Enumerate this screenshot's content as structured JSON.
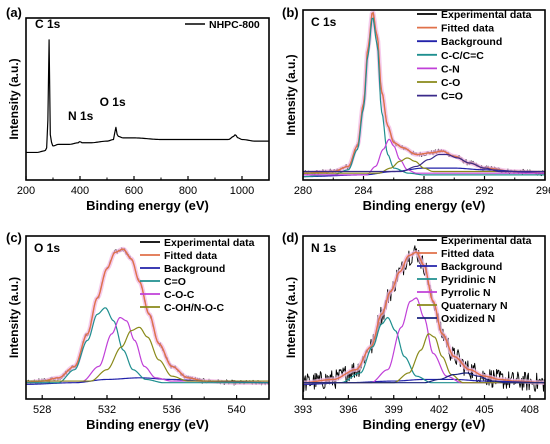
{
  "colors": {
    "experimental": "#000000",
    "fitted": "#e0714a",
    "background": "#2222aa",
    "teal": "#1f8f8f",
    "magenta": "#c040d8",
    "olive": "#8a8a1a",
    "navy": "#3a2a8a",
    "darkblue": "#1a237e"
  },
  "chart_data": [
    {
      "type": "line",
      "panel_label": "(a)",
      "xlabel": "Binding energy (eV)",
      "ylabel": "Intensity (a.u.)",
      "xlim": [
        200,
        1100
      ],
      "xticks": [
        200,
        400,
        600,
        800,
        1000
      ],
      "ylim": [
        0,
        1
      ],
      "legend_position": "top-right",
      "annotations": [
        {
          "text": "C 1s",
          "x": 285
        },
        {
          "text": "N 1s",
          "x": 400
        },
        {
          "text": "O 1s",
          "x": 532
        }
      ],
      "series": [
        {
          "name": "NHPC-800",
          "color": "#000000",
          "x": [
            200,
            240,
            270,
            278,
            282,
            284,
            285,
            286,
            288,
            292,
            300,
            320,
            360,
            395,
            400,
            405,
            440,
            500,
            525,
            530,
            532,
            534,
            540,
            560,
            600,
            700,
            800,
            900,
            950,
            970,
            975,
            985,
            1000,
            1050,
            1100
          ],
          "y": [
            0.17,
            0.17,
            0.18,
            0.2,
            0.4,
            0.8,
            0.98,
            0.75,
            0.32,
            0.24,
            0.21,
            0.22,
            0.22,
            0.23,
            0.24,
            0.23,
            0.23,
            0.24,
            0.25,
            0.3,
            0.35,
            0.3,
            0.27,
            0.26,
            0.26,
            0.25,
            0.25,
            0.25,
            0.25,
            0.27,
            0.28,
            0.26,
            0.25,
            0.24,
            0.24
          ]
        }
      ]
    },
    {
      "type": "line",
      "panel_label": "(b)",
      "title": "C 1s",
      "xlabel": "Binding energy (eV)",
      "ylabel": "Intensity (a.u.)",
      "xlim": [
        280,
        296
      ],
      "xticks": [
        280,
        284,
        288,
        292,
        296
      ],
      "ylim": [
        0,
        1
      ],
      "legend_position": "top-right",
      "legend": [
        "Experimental data",
        "Fitted data",
        "Background",
        "C-C/C=C",
        "C-N",
        "C-O",
        "C=O"
      ],
      "series": [
        {
          "name": "Experimental data",
          "color": "#000000",
          "noisy": true,
          "x": [
            280,
            282,
            283,
            283.6,
            284.0,
            284.3,
            284.6,
            284.9,
            285.2,
            285.6,
            286.0,
            286.6,
            287.5,
            288.5,
            289.2,
            290.0,
            291.0,
            292.0,
            294.0,
            296.0
          ],
          "y": [
            0.04,
            0.05,
            0.08,
            0.2,
            0.45,
            0.78,
            0.99,
            0.85,
            0.52,
            0.32,
            0.22,
            0.19,
            0.15,
            0.16,
            0.17,
            0.14,
            0.1,
            0.07,
            0.05,
            0.04
          ]
        },
        {
          "name": "Fitted data",
          "color": "#e0714a",
          "x": [
            280,
            282,
            283,
            283.6,
            284.0,
            284.3,
            284.6,
            284.9,
            285.2,
            285.6,
            286.0,
            286.6,
            287.5,
            288.5,
            289.2,
            290.0,
            291.0,
            292.0,
            294.0,
            296.0
          ],
          "y": [
            0.04,
            0.05,
            0.08,
            0.2,
            0.45,
            0.78,
            0.99,
            0.85,
            0.52,
            0.32,
            0.22,
            0.19,
            0.15,
            0.16,
            0.17,
            0.14,
            0.1,
            0.07,
            0.05,
            0.04
          ]
        },
        {
          "name": "Background",
          "color": "#2222aa",
          "x": [
            280,
            284,
            286,
            288,
            290,
            292,
            296
          ],
          "y": [
            0.02,
            0.03,
            0.05,
            0.07,
            0.07,
            0.06,
            0.04
          ]
        },
        {
          "name": "C-C/C=C",
          "color": "#1f8f8f",
          "x": [
            280,
            282,
            283,
            283.6,
            284.0,
            284.3,
            284.6,
            284.9,
            285.2,
            285.6,
            286.0,
            287.0,
            288.0,
            290.0,
            296.0
          ],
          "y": [
            0.02,
            0.03,
            0.06,
            0.18,
            0.42,
            0.74,
            0.96,
            0.8,
            0.4,
            0.15,
            0.07,
            0.04,
            0.03,
            0.03,
            0.03
          ]
        },
        {
          "name": "C-N",
          "color": "#c040d8",
          "x": [
            284.2,
            284.8,
            285.3,
            285.7,
            286.0,
            286.4,
            286.9,
            287.5
          ],
          "y": [
            0.03,
            0.08,
            0.18,
            0.24,
            0.2,
            0.12,
            0.06,
            0.04
          ]
        },
        {
          "name": "C-O",
          "color": "#8a8a1a",
          "x": [
            285.0,
            285.8,
            286.4,
            286.9,
            287.4,
            288.0,
            288.6
          ],
          "y": [
            0.04,
            0.07,
            0.11,
            0.13,
            0.11,
            0.07,
            0.05
          ]
        },
        {
          "name": "C=O",
          "color": "#3a2a8a",
          "x": [
            286.5,
            287.5,
            288.3,
            289.0,
            289.5,
            290.2,
            291.0,
            292.0,
            293.0
          ],
          "y": [
            0.05,
            0.08,
            0.12,
            0.15,
            0.15,
            0.13,
            0.1,
            0.07,
            0.05
          ]
        }
      ]
    },
    {
      "type": "line",
      "panel_label": "(c)",
      "title": "O 1s",
      "xlabel": "Binding energy (eV)",
      "ylabel": "Intensity (a.u.)",
      "xlim": [
        527,
        542
      ],
      "xticks": [
        528,
        532,
        536,
        540
      ],
      "ylim": [
        0,
        1
      ],
      "legend_position": "top-right",
      "legend": [
        "Experimental data",
        "Fitted data",
        "Background",
        "C=O",
        "C-O-C",
        "C-OH/N-O-C"
      ],
      "series": [
        {
          "name": "Experimental data",
          "color": "#000000",
          "noisy": true,
          "x": [
            527,
            528,
            529,
            530,
            530.8,
            531.4,
            532.0,
            532.5,
            533.0,
            533.5,
            534.0,
            534.6,
            535.2,
            536.0,
            537.0,
            538.0,
            540.0,
            542.0
          ],
          "y": [
            0.1,
            0.11,
            0.13,
            0.2,
            0.4,
            0.62,
            0.8,
            0.9,
            0.92,
            0.86,
            0.72,
            0.52,
            0.34,
            0.2,
            0.13,
            0.11,
            0.1,
            0.1
          ]
        },
        {
          "name": "Fitted data",
          "color": "#e0714a",
          "x": [
            527,
            528,
            529,
            530,
            530.8,
            531.4,
            532.0,
            532.5,
            533.0,
            533.5,
            534.0,
            534.6,
            535.2,
            536.0,
            537.0,
            538.0,
            540.0,
            542.0
          ],
          "y": [
            0.1,
            0.11,
            0.13,
            0.2,
            0.4,
            0.62,
            0.8,
            0.9,
            0.92,
            0.86,
            0.72,
            0.52,
            0.34,
            0.2,
            0.13,
            0.11,
            0.1,
            0.1
          ]
        },
        {
          "name": "Background",
          "color": "#2222aa",
          "x": [
            527,
            530,
            532,
            534,
            536,
            538,
            542
          ],
          "y": [
            0.09,
            0.1,
            0.12,
            0.13,
            0.12,
            0.11,
            0.1
          ]
        },
        {
          "name": "C=O",
          "color": "#1f8f8f",
          "x": [
            529.0,
            530.0,
            530.8,
            531.4,
            531.9,
            532.4,
            533.0,
            533.6,
            534.4,
            535.5
          ],
          "y": [
            0.1,
            0.18,
            0.36,
            0.52,
            0.56,
            0.48,
            0.3,
            0.18,
            0.12,
            0.1
          ]
        },
        {
          "name": "C-O-C",
          "color": "#c040d8",
          "x": [
            530.5,
            531.5,
            532.3,
            532.8,
            533.2,
            533.7,
            534.3,
            535.0,
            536.0
          ],
          "y": [
            0.11,
            0.2,
            0.4,
            0.5,
            0.48,
            0.36,
            0.2,
            0.13,
            0.11
          ]
        },
        {
          "name": "C-OH/N-O-C",
          "color": "#8a8a1a",
          "x": [
            531.0,
            532.0,
            532.9,
            533.5,
            534.0,
            534.5,
            535.2,
            536.0,
            537.0
          ],
          "y": [
            0.11,
            0.18,
            0.32,
            0.42,
            0.44,
            0.38,
            0.24,
            0.14,
            0.11
          ]
        }
      ]
    },
    {
      "type": "line",
      "panel_label": "(d)",
      "title": "N 1s",
      "xlabel": "Binding energy (eV)",
      "ylabel": "Intensity (a.u.)",
      "xlim": [
        393,
        409
      ],
      "xticks": [
        393,
        396,
        399,
        402,
        405,
        408
      ],
      "ylim": [
        0,
        1
      ],
      "legend_position": "top-right",
      "legend": [
        "Experimental data",
        "Fitted data",
        "Background",
        "Pyridinic N",
        "Pyrrolic N",
        "Quaternary N",
        "Oxidized N"
      ],
      "series": [
        {
          "name": "Experimental data",
          "color": "#000000",
          "noisy": true,
          "x": [
            393,
            395,
            396.5,
            397.5,
            398.2,
            398.8,
            399.4,
            400.0,
            400.5,
            401.0,
            401.6,
            402.2,
            403.0,
            404.0,
            405.0,
            406.0,
            407.0,
            409.0
          ],
          "y": [
            0.1,
            0.12,
            0.18,
            0.32,
            0.52,
            0.66,
            0.78,
            0.88,
            0.9,
            0.82,
            0.6,
            0.4,
            0.26,
            0.18,
            0.14,
            0.12,
            0.11,
            0.1
          ]
        },
        {
          "name": "Fitted data",
          "color": "#e0714a",
          "x": [
            393,
            395,
            396.5,
            397.5,
            398.2,
            398.8,
            399.4,
            400.0,
            400.5,
            401.0,
            401.6,
            402.2,
            403.0,
            404.0,
            405.0,
            406.0,
            407.0,
            409.0
          ],
          "y": [
            0.1,
            0.12,
            0.18,
            0.32,
            0.52,
            0.66,
            0.78,
            0.88,
            0.9,
            0.82,
            0.6,
            0.4,
            0.26,
            0.18,
            0.14,
            0.12,
            0.11,
            0.1
          ]
        },
        {
          "name": "Background",
          "color": "#2222aa",
          "x": [
            393,
            396,
            399,
            401,
            403,
            405,
            409
          ],
          "y": [
            0.09,
            0.1,
            0.11,
            0.12,
            0.12,
            0.11,
            0.1
          ]
        },
        {
          "name": "Pyridinic N",
          "color": "#1f8f8f",
          "x": [
            395.5,
            396.8,
            397.6,
            398.2,
            398.6,
            399.1,
            399.7,
            400.5,
            401.5
          ],
          "y": [
            0.1,
            0.16,
            0.32,
            0.46,
            0.5,
            0.42,
            0.26,
            0.14,
            0.1
          ]
        },
        {
          "name": "Pyrrolic N",
          "color": "#c040d8",
          "x": [
            397.5,
            398.6,
            399.5,
            400.1,
            400.5,
            401.0,
            401.6,
            402.5,
            403.5
          ],
          "y": [
            0.1,
            0.18,
            0.44,
            0.6,
            0.62,
            0.5,
            0.28,
            0.14,
            0.1
          ]
        },
        {
          "name": "Quaternary N",
          "color": "#8a8a1a",
          "x": [
            399.0,
            400.0,
            400.8,
            401.3,
            401.7,
            402.2,
            402.8,
            403.6
          ],
          "y": [
            0.1,
            0.16,
            0.3,
            0.4,
            0.38,
            0.26,
            0.15,
            0.1
          ]
        },
        {
          "name": "Oxidized N",
          "color": "#1a237e",
          "x": [
            401.0,
            402.0,
            403.0,
            403.8,
            404.6,
            405.5,
            406.5
          ],
          "y": [
            0.1,
            0.12,
            0.15,
            0.16,
            0.14,
            0.11,
            0.1
          ]
        }
      ]
    }
  ]
}
